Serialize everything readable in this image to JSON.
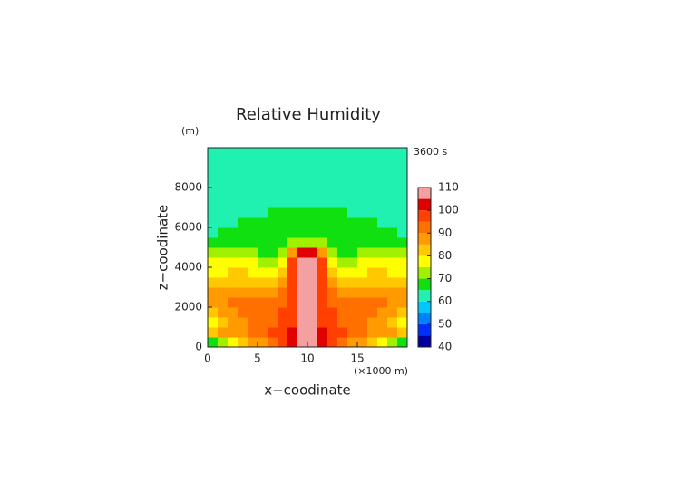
{
  "chart_data": {
    "type": "contour",
    "title": "Relative Humidity",
    "y_unit": "(m)",
    "x_unit": "(×1000 m)",
    "time_label": "3600 s",
    "x_label": "x−coodinate",
    "y_label": "z−coodinate",
    "xlim": [
      0,
      20
    ],
    "xticks": [
      0,
      5,
      10,
      15
    ],
    "ylim": [
      0,
      10000
    ],
    "yticks": [
      0,
      2000,
      4000,
      6000,
      8000
    ],
    "x": [
      0.5,
      1.5,
      2.5,
      3.5,
      4.5,
      5.5,
      6.5,
      7.5,
      8.5,
      9.5,
      10.5,
      11.5,
      12.5,
      13.5,
      14.5,
      15.5,
      16.5,
      17.5,
      18.5,
      19.5
    ],
    "y": [
      250,
      750,
      1250,
      1750,
      2250,
      2750,
      3250,
      3750,
      4250,
      4750,
      5250,
      5750,
      6250,
      6750,
      7250,
      7750,
      8250,
      8750,
      9250,
      9750
    ],
    "z": [
      [
        68,
        72,
        78,
        82,
        86,
        88,
        90,
        95,
        102,
        106,
        106,
        102,
        95,
        90,
        88,
        86,
        82,
        78,
        72,
        68
      ],
      [
        82,
        86,
        88,
        88,
        90,
        92,
        95,
        98,
        102,
        106,
        106,
        102,
        98,
        95,
        92,
        90,
        88,
        88,
        86,
        82
      ],
      [
        78,
        82,
        86,
        88,
        90,
        92,
        94,
        96,
        98,
        106,
        106,
        98,
        96,
        94,
        92,
        90,
        88,
        86,
        82,
        78
      ],
      [
        84,
        86,
        88,
        90,
        92,
        93,
        94,
        95,
        97,
        106,
        106,
        97,
        95,
        94,
        93,
        92,
        90,
        88,
        86,
        84
      ],
      [
        88,
        88,
        90,
        90,
        90,
        91,
        92,
        93,
        96,
        106,
        106,
        96,
        93,
        92,
        91,
        90,
        90,
        90,
        88,
        88
      ],
      [
        88,
        87,
        86,
        86,
        87,
        88,
        88,
        90,
        96,
        106,
        106,
        96,
        90,
        88,
        88,
        87,
        86,
        86,
        87,
        88
      ],
      [
        84,
        84,
        82,
        82,
        82,
        83,
        84,
        86,
        96,
        106,
        106,
        96,
        86,
        84,
        83,
        82,
        82,
        82,
        84,
        84
      ],
      [
        78,
        78,
        80,
        80,
        79,
        78,
        78,
        82,
        96,
        106,
        106,
        96,
        82,
        78,
        78,
        79,
        80,
        80,
        78,
        78
      ],
      [
        76,
        76,
        77,
        78,
        76,
        74,
        72,
        78,
        96,
        106,
        106,
        96,
        78,
        72,
        74,
        76,
        78,
        77,
        76,
        76
      ],
      [
        70,
        70,
        70,
        72,
        74,
        68,
        66,
        72,
        88,
        102,
        102,
        88,
        72,
        66,
        68,
        74,
        72,
        70,
        70,
        70
      ],
      [
        66,
        66,
        67,
        67,
        67,
        67,
        66,
        68,
        70,
        72,
        72,
        70,
        68,
        66,
        67,
        67,
        67,
        67,
        66,
        66
      ],
      [
        64,
        66,
        67,
        67,
        67,
        67,
        67,
        67,
        67,
        67,
        67,
        67,
        67,
        67,
        67,
        67,
        67,
        67,
        66,
        64
      ],
      [
        62,
        62,
        63,
        66,
        67,
        67,
        67,
        67,
        67,
        67,
        67,
        67,
        67,
        67,
        67,
        67,
        66,
        63,
        62,
        62
      ],
      [
        62,
        62,
        62,
        62,
        62,
        63,
        66,
        67,
        67,
        67,
        67,
        67,
        67,
        66,
        63,
        62,
        62,
        62,
        62,
        62
      ],
      [
        62,
        62,
        62,
        62,
        62,
        62,
        62,
        62,
        62,
        62,
        62,
        62,
        62,
        62,
        62,
        62,
        62,
        62,
        62,
        62
      ],
      [
        62,
        62,
        62,
        62,
        62,
        62,
        62,
        62,
        62,
        62,
        62,
        62,
        62,
        62,
        62,
        62,
        62,
        62,
        62,
        62
      ],
      [
        62,
        62,
        62,
        62,
        62,
        62,
        62,
        62,
        62,
        62,
        62,
        62,
        62,
        62,
        62,
        62,
        62,
        62,
        62,
        62
      ],
      [
        62,
        62,
        62,
        62,
        62,
        62,
        62,
        62,
        62,
        62,
        62,
        62,
        62,
        62,
        62,
        62,
        62,
        62,
        62,
        62
      ],
      [
        62,
        62,
        62,
        62,
        62,
        62,
        62,
        62,
        62,
        62,
        62,
        62,
        62,
        62,
        62,
        62,
        62,
        62,
        62,
        62
      ],
      [
        62,
        62,
        62,
        62,
        62,
        62,
        62,
        62,
        62,
        62,
        62,
        62,
        62,
        62,
        62,
        62,
        62,
        62,
        62,
        62
      ]
    ],
    "levels": [
      40,
      45,
      50,
      55,
      60,
      65,
      70,
      75,
      80,
      85,
      90,
      95,
      100,
      105,
      110
    ],
    "colors": [
      "#0000a0",
      "#0030ff",
      "#0080ff",
      "#00c8ff",
      "#20f0b0",
      "#10e010",
      "#a0f000",
      "#ffff00",
      "#ffc800",
      "#ff9a00",
      "#ff7000",
      "#ff4000",
      "#e00000",
      "#f4a0a0"
    ],
    "cbticks": [
      40,
      50,
      60,
      70,
      80,
      90,
      100,
      110
    ]
  }
}
